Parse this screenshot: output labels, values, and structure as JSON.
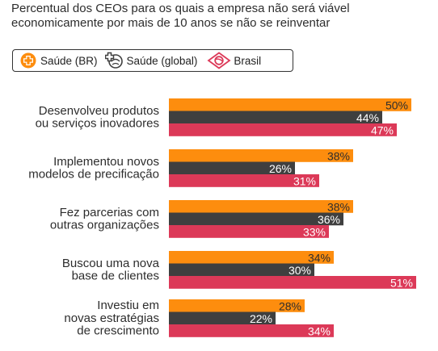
{
  "title": {
    "line1": "Percentual dos CEOs para os quais a empresa não será viável",
    "line2": "economicamente por mais de 10 anos se não se reinventar"
  },
  "legend": {
    "items": [
      {
        "label": "Saúde (BR)",
        "icon": "plus-circle-icon",
        "color": "#fd8d0e"
      },
      {
        "label": "Saúde (global)",
        "icon": "plus-globe-icon",
        "color": "#3f3f3f"
      },
      {
        "label": "Brasil",
        "icon": "diamond-flag-icon",
        "color": "#dc3958"
      }
    ]
  },
  "colors": {
    "saude_br": "#fd8d0e",
    "saude_global": "#3f3f3f",
    "brasil": "#dc3958",
    "label_dark": "#2d2d2d",
    "label_light": "#ffffff"
  },
  "chart_data": {
    "type": "bar",
    "orientation": "horizontal",
    "title": "Percentual dos CEOs para os quais a empresa não será viável economicamente por mais de 10 anos se não se reinventar",
    "categories": [
      [
        "Desenvolveu produtos",
        "ou serviços inovadores"
      ],
      [
        "Implementou novos",
        "modelos de precificação"
      ],
      [
        "Fez parcerias com",
        "outras organizações"
      ],
      [
        "Buscou uma nova",
        "base de clientes"
      ],
      [
        "Investiu em",
        "novas estratégias",
        "de crescimento"
      ]
    ],
    "series": [
      {
        "name": "Saúde (BR)",
        "values": [
          50,
          38,
          38,
          34,
          28
        ],
        "labels": [
          "50%",
          "38%",
          "38%",
          "34%",
          "28%"
        ]
      },
      {
        "name": "Saúde (global)",
        "values": [
          44,
          26,
          36,
          30,
          22
        ],
        "labels": [
          "44%",
          "26%",
          "36%",
          "30%",
          "22%"
        ]
      },
      {
        "name": "Brasil",
        "values": [
          47,
          31,
          33,
          51,
          34
        ],
        "labels": [
          "47%",
          "31%",
          "33%",
          "51%",
          "34%"
        ]
      }
    ],
    "xlim": [
      0,
      100
    ],
    "grid": false,
    "legend_position": "top-left",
    "unit": "%"
  }
}
